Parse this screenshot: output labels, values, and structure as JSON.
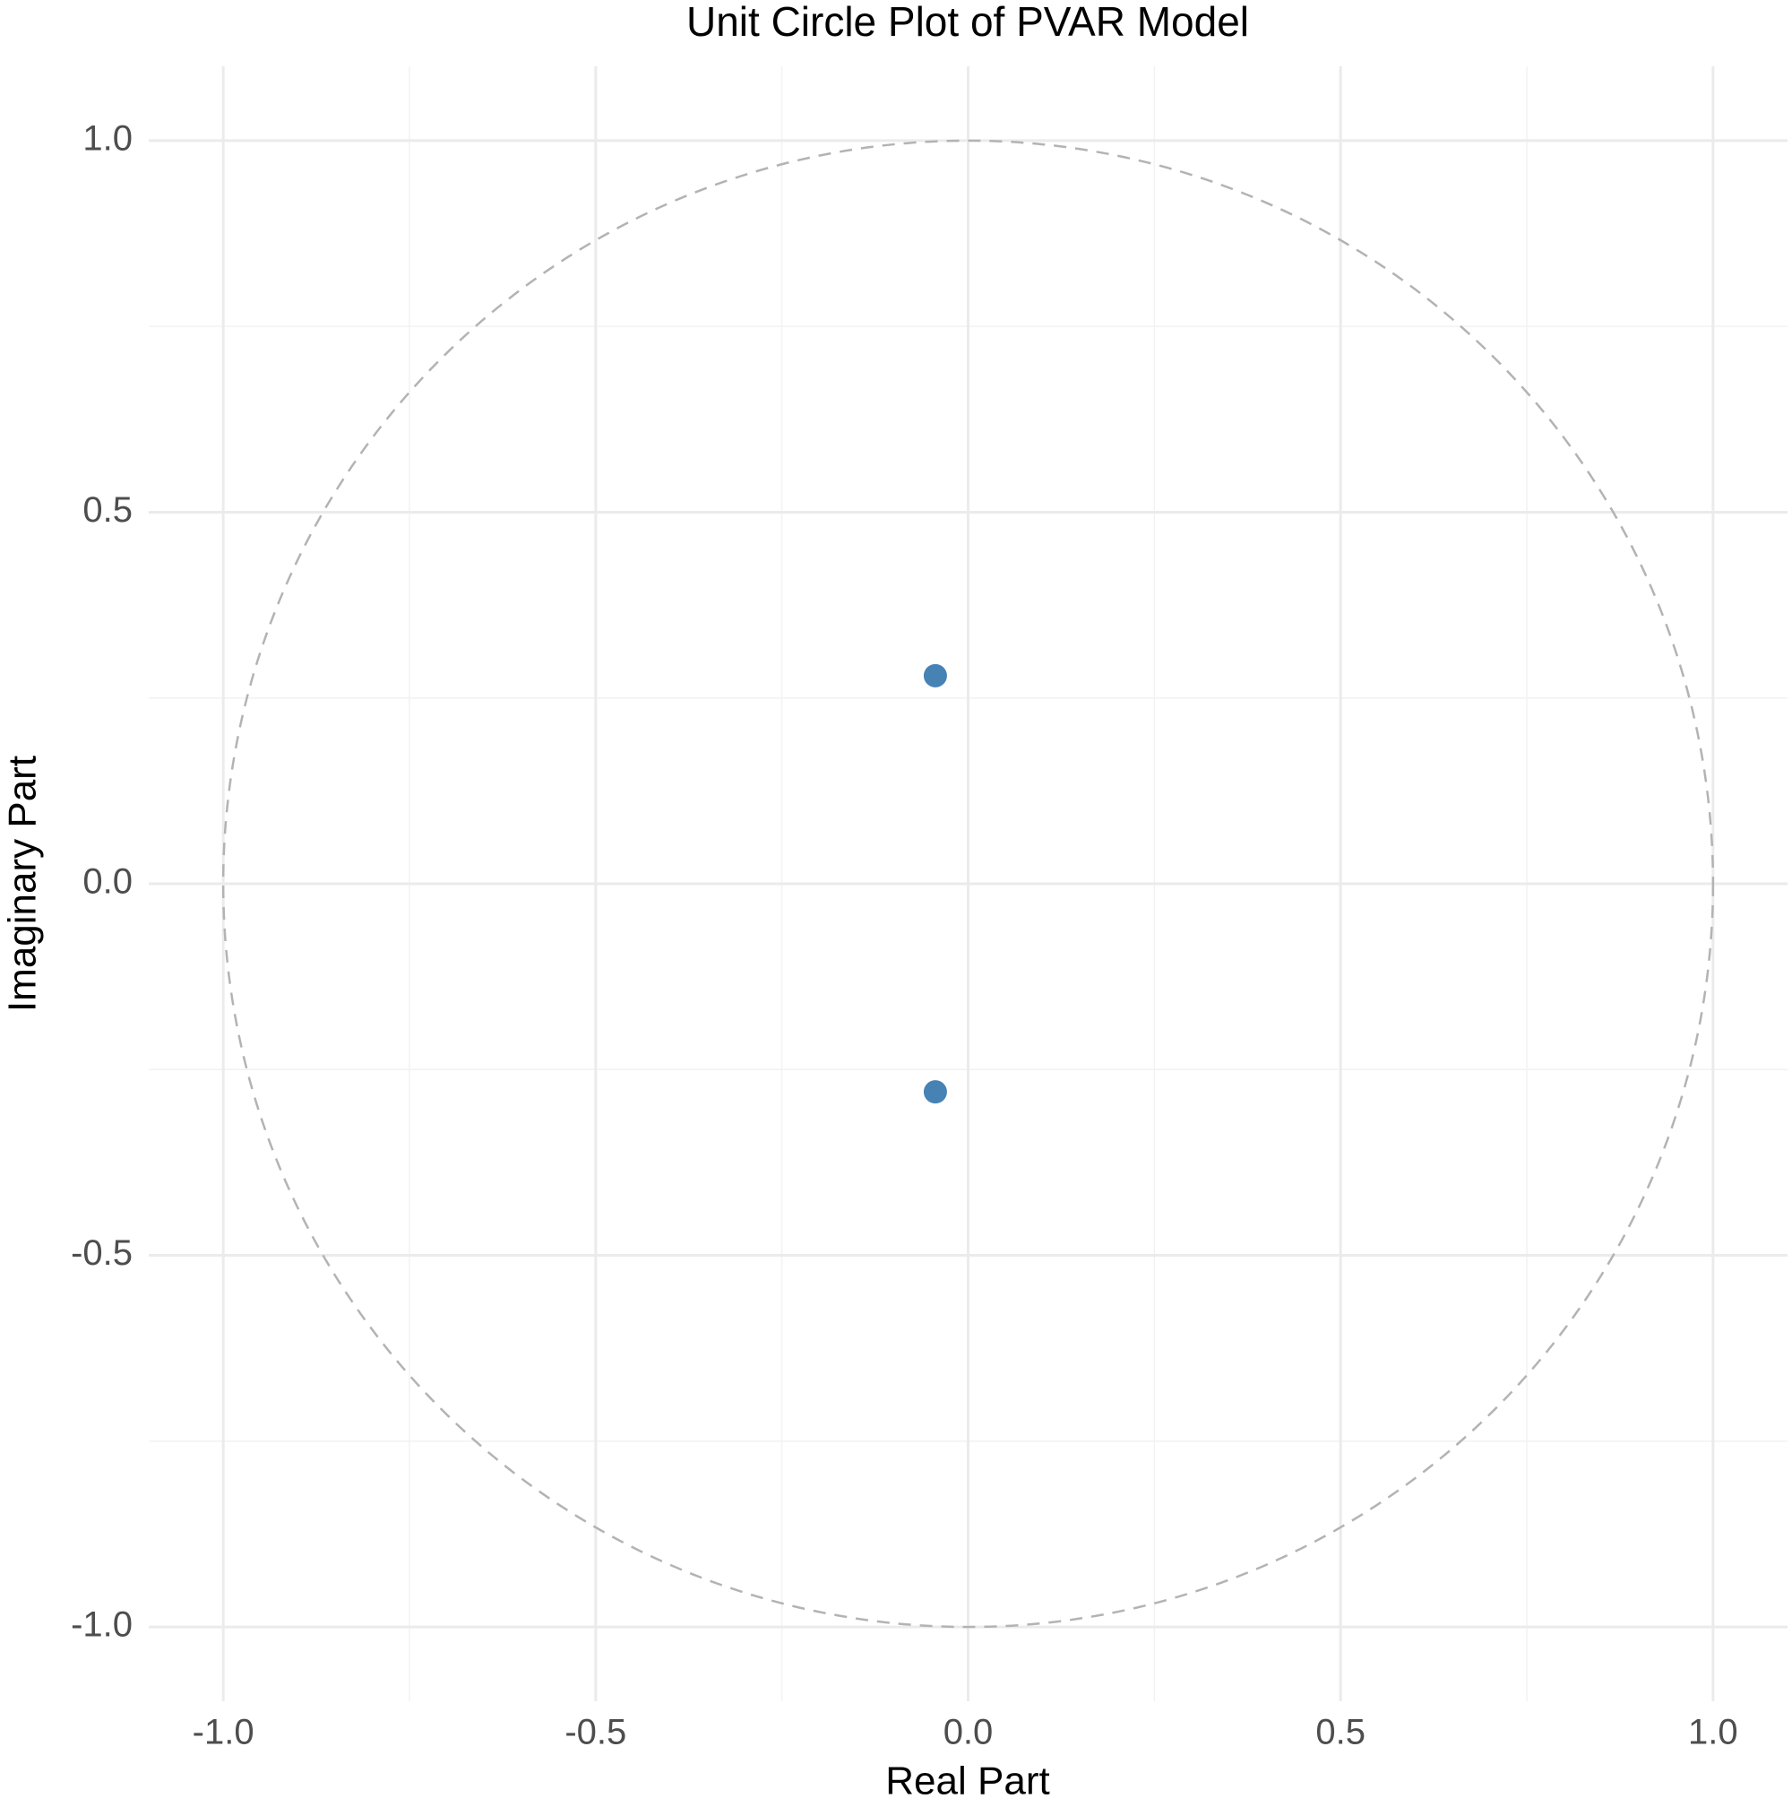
{
  "chart_data": {
    "type": "scatter",
    "title": "Unit Circle Plot of PVAR Model",
    "x_label": "Real Part",
    "y_label": "Imaginary Part",
    "series": [
      {
        "x": [
          -0.044,
          -0.044
        ],
        "values": [
          0.28,
          -0.28
        ],
        "color": "#4682b4"
      }
    ],
    "xlim": [
      -1.1,
      1.1
    ],
    "ylim": [
      -1.1,
      1.1
    ],
    "xticks": [
      {
        "value": -1,
        "label": "-1.0"
      },
      {
        "value": -0.5,
        "label": "-0.5"
      },
      {
        "value": 0,
        "label": "0.0"
      },
      {
        "value": 0.5,
        "label": "0.5"
      },
      {
        "value": 1,
        "label": "1.0"
      }
    ],
    "yticks": [
      {
        "value": -1,
        "label": "-1.0"
      },
      {
        "value": -0.5,
        "label": "-0.5"
      },
      {
        "value": 0,
        "label": "0.0"
      },
      {
        "value": 0.5,
        "label": "0.5"
      },
      {
        "value": 1,
        "label": "1.0"
      }
    ],
    "x_minor_ticks": [
      -0.75,
      -0.25,
      0.25,
      0.75
    ],
    "y_minor_ticks": [
      -0.75,
      -0.25,
      0.25,
      0.75
    ],
    "grid": true,
    "reference_circle": {
      "radius": 1,
      "color": "#b3b3b3",
      "dashed": true
    }
  }
}
